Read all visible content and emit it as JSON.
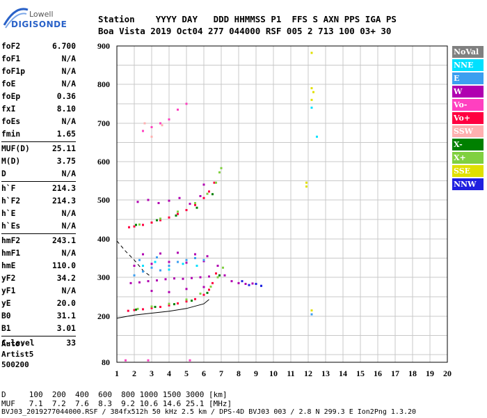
{
  "logo": {
    "brand": "Lowell",
    "product": "DIGISONDE"
  },
  "header": {
    "row1": "Station    YYYY DAY   DDD HHMMSS P1  FFS S AXN PPS IGA PS",
    "row2": "Boa Vista 2019 Oct04 277 044000 RSF 005 2 713 100 03+ 30"
  },
  "params": [
    {
      "label": "foF2",
      "value": "6.700"
    },
    {
      "label": "foF1",
      "value": "N/A"
    },
    {
      "label": "foF1p",
      "value": "N/A"
    },
    {
      "label": "foE",
      "value": "N/A"
    },
    {
      "label": "foEp",
      "value": "0.36"
    },
    {
      "label": "fxI",
      "value": "8.10"
    },
    {
      "label": "foEs",
      "value": "N/A"
    },
    {
      "label": "fmin",
      "value": "1.65"
    },
    {
      "sep": true
    },
    {
      "label": "MUF(D)",
      "value": "25.11"
    },
    {
      "label": "M(D)",
      "value": "3.75"
    },
    {
      "label": "D",
      "value": "N/A"
    },
    {
      "sep": true
    },
    {
      "label": "h`F",
      "value": "214.3"
    },
    {
      "label": "h`F2",
      "value": "214.3"
    },
    {
      "label": "h`E",
      "value": "N/A"
    },
    {
      "label": "h`Es",
      "value": "N/A"
    },
    {
      "sep": true
    },
    {
      "label": "hmF2",
      "value": "243.1"
    },
    {
      "label": "hmF1",
      "value": "N/A"
    },
    {
      "label": "hmE",
      "value": "110.0"
    },
    {
      "label": "yF2",
      "value": "34.2"
    },
    {
      "label": "yF1",
      "value": "N/A"
    },
    {
      "label": "yE",
      "value": "20.0"
    },
    {
      "label": "B0",
      "value": "31.1"
    },
    {
      "label": "B1",
      "value": "3.01"
    },
    {
      "sep": true
    },
    {
      "label": "C-level",
      "value": "33"
    }
  ],
  "auto": {
    "line1": "Auto:",
    "line2": "Artist5",
    "line3": "500200"
  },
  "legend": [
    {
      "label": "NoVal",
      "bg": "#808080",
      "fg": "#ffffff"
    },
    {
      "label": "NNE",
      "bg": "#00e0ff",
      "fg": "#ffffff"
    },
    {
      "label": "E",
      "bg": "#3c9ff0",
      "fg": "#ffffff"
    },
    {
      "label": "W",
      "bg": "#b000b0",
      "fg": "#ffffff"
    },
    {
      "label": "Vo-",
      "bg": "#ff40c0",
      "fg": "#ffffff"
    },
    {
      "label": "Vo+",
      "bg": "#ff0040",
      "fg": "#ffffff"
    },
    {
      "label": "SSW",
      "bg": "#ffb0b0",
      "fg": "#ffffff"
    },
    {
      "label": "X-",
      "bg": "#008000",
      "fg": "#ffffff"
    },
    {
      "label": "X+",
      "bg": "#80d040",
      "fg": "#ffffff"
    },
    {
      "label": "SSE",
      "bg": "#e0e000",
      "fg": "#ffffff"
    },
    {
      "label": "NNW",
      "bg": "#2020e0",
      "fg": "#ffffff"
    }
  ],
  "footer": {
    "row1": "D     100  200  400  600  800 1000 1500 3000 [km]",
    "row2": "MUF   7.1  7.2  7.6  8.3  9.2 10.6 14.6 25.1 [MHz]",
    "file_line": "BVJ03_2019277044000.RSF / 384fx512h 50 kHz 2.5 km / DPS-4D BVJ03 003 / 2.8 N 299.3 E Ion2Png 1.3.20"
  },
  "chart_data": {
    "type": "scatter",
    "title": "",
    "xlabel": "",
    "ylabel": "",
    "xlim": [
      1,
      20
    ],
    "ylim": [
      80,
      900
    ],
    "x_ticks": [
      1,
      2,
      3,
      4,
      5,
      6,
      7,
      8,
      9,
      10,
      11,
      12,
      13,
      14,
      15,
      16,
      17,
      18,
      19,
      20
    ],
    "y_ticks": [
      80,
      200,
      300,
      400,
      500,
      600,
      700,
      800,
      900
    ],
    "grid": true,
    "series": [
      {
        "name": "Vo+",
        "color": "#ff0040",
        "points": [
          [
            1.65,
            214
          ],
          [
            2,
            216
          ],
          [
            2.5,
            218
          ],
          [
            3,
            221
          ],
          [
            3.5,
            224
          ],
          [
            4,
            228
          ],
          [
            4.5,
            233
          ],
          [
            5,
            238
          ],
          [
            5.5,
            244
          ],
          [
            6,
            255
          ],
          [
            6.3,
            268
          ],
          [
            6.5,
            285
          ],
          [
            6.7,
            310
          ],
          [
            1.7,
            430
          ],
          [
            2,
            432
          ],
          [
            2.5,
            436
          ],
          [
            3,
            442
          ],
          [
            3.5,
            448
          ],
          [
            4,
            455
          ],
          [
            4.5,
            464
          ],
          [
            5,
            474
          ],
          [
            5.5,
            487
          ],
          [
            6,
            505
          ],
          [
            6.3,
            522
          ],
          [
            6.6,
            545
          ]
        ]
      },
      {
        "name": "X+",
        "color": "#80d040",
        "points": [
          [
            2.2,
            219
          ],
          [
            3,
            225
          ],
          [
            4,
            232
          ],
          [
            5,
            243
          ],
          [
            5.8,
            258
          ],
          [
            6.4,
            276
          ],
          [
            6.8,
            300
          ],
          [
            7.1,
            325
          ],
          [
            2.3,
            437
          ],
          [
            3.5,
            452
          ],
          [
            4.5,
            470
          ],
          [
            5.5,
            492
          ],
          [
            6.2,
            516
          ],
          [
            6.7,
            545
          ],
          [
            6.9,
            572
          ],
          [
            7.0,
            583
          ]
        ]
      },
      {
        "name": "X-",
        "color": "#008000",
        "points": [
          [
            2.1,
            217
          ],
          [
            3.2,
            224
          ],
          [
            4.3,
            231
          ],
          [
            5.3,
            240
          ],
          [
            6.2,
            260
          ],
          [
            6.9,
            305
          ],
          [
            2.1,
            436
          ],
          [
            3.3,
            448
          ],
          [
            4.4,
            460
          ],
          [
            5.6,
            480
          ],
          [
            6.5,
            515
          ]
        ]
      },
      {
        "name": "W",
        "color": "#b000b0",
        "points": [
          [
            1.8,
            285
          ],
          [
            2.3,
            287
          ],
          [
            2.8,
            290
          ],
          [
            3.3,
            292
          ],
          [
            3.8,
            295
          ],
          [
            4.3,
            297
          ],
          [
            4.8,
            296
          ],
          [
            5.3,
            298
          ],
          [
            5.8,
            300
          ],
          [
            6.3,
            302
          ],
          [
            2.0,
            330
          ],
          [
            3.0,
            335
          ],
          [
            4.0,
            340
          ],
          [
            5.0,
            338
          ],
          [
            6.0,
            342
          ],
          [
            2.5,
            360
          ],
          [
            3.5,
            362
          ],
          [
            4.5,
            364
          ],
          [
            5.5,
            360
          ],
          [
            6.2,
            355
          ],
          [
            6.8,
            330
          ],
          [
            7.2,
            305
          ],
          [
            7.6,
            290
          ],
          [
            8.0,
            285
          ],
          [
            8.4,
            283
          ],
          [
            8.8,
            284
          ],
          [
            2.2,
            495
          ],
          [
            2.8,
            500
          ],
          [
            3.4,
            492
          ],
          [
            4.0,
            498
          ],
          [
            4.6,
            505
          ],
          [
            5.2,
            490
          ],
          [
            5.8,
            510
          ],
          [
            6.0,
            540
          ],
          [
            3.0,
            265
          ],
          [
            4.0,
            262
          ],
          [
            5.0,
            270
          ],
          [
            6.0,
            275
          ]
        ]
      },
      {
        "name": "E",
        "color": "#3c9ff0",
        "points": [
          [
            2.0,
            305
          ],
          [
            2.5,
            315
          ],
          [
            3.0,
            325
          ],
          [
            3.5,
            318
          ],
          [
            4.0,
            330
          ],
          [
            4.5,
            340
          ],
          [
            5.0,
            345
          ],
          [
            5.5,
            350
          ],
          [
            6.0,
            345
          ],
          [
            2.3,
            345
          ],
          [
            3.3,
            352
          ],
          [
            9.3,
            278
          ],
          [
            12.2,
            205
          ]
        ]
      },
      {
        "name": "NNE",
        "color": "#00e0ff",
        "points": [
          [
            2.5,
            330
          ],
          [
            3.2,
            340
          ],
          [
            4.0,
            320
          ],
          [
            4.8,
            335
          ],
          [
            5.6,
            330
          ],
          [
            12.2,
            740
          ],
          [
            12.5,
            665
          ]
        ]
      },
      {
        "name": "Vo-",
        "color": "#ff40c0",
        "points": [
          [
            2.5,
            680
          ],
          [
            3.0,
            690
          ],
          [
            3.5,
            700
          ],
          [
            4.0,
            710
          ],
          [
            4.5,
            735
          ],
          [
            5.0,
            750
          ],
          [
            1.5,
            85
          ],
          [
            2.8,
            85
          ],
          [
            5.2,
            85
          ]
        ]
      },
      {
        "name": "SSE",
        "color": "#e0e000",
        "points": [
          [
            12.2,
            882
          ],
          [
            12.2,
            790
          ],
          [
            12.3,
            780
          ],
          [
            12.2,
            760
          ],
          [
            11.9,
            545
          ],
          [
            11.9,
            535
          ],
          [
            12.2,
            215
          ]
        ]
      },
      {
        "name": "NNW",
        "color": "#2020e0",
        "points": [
          [
            8.6,
            280
          ],
          [
            9.0,
            283
          ],
          [
            9.3,
            278
          ],
          [
            8.2,
            290
          ]
        ]
      },
      {
        "name": "SSW",
        "color": "#ffb0b0",
        "points": [
          [
            3.0,
            665
          ],
          [
            3.6,
            695
          ],
          [
            2.6,
            700
          ]
        ]
      }
    ],
    "curves": [
      {
        "name": "profile",
        "color": "#000000",
        "points": [
          [
            1,
            195
          ],
          [
            2,
            203
          ],
          [
            3,
            208
          ],
          [
            4,
            213
          ],
          [
            5,
            220
          ],
          [
            6,
            232
          ],
          [
            6.3,
            243
          ]
        ]
      },
      {
        "name": "profile-dashed",
        "color": "#000000",
        "dashed": true,
        "points": [
          [
            1,
            395
          ],
          [
            1.5,
            368
          ],
          [
            2,
            345
          ],
          [
            2.5,
            318
          ],
          [
            3,
            300
          ]
        ]
      }
    ]
  }
}
